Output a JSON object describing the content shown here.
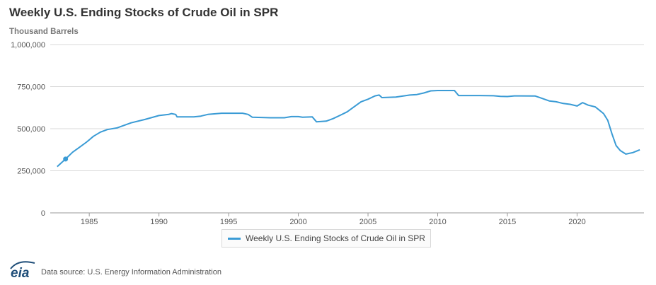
{
  "header": {
    "title": "Weekly U.S. Ending Stocks of Crude Oil in SPR",
    "units": "Thousand Barrels"
  },
  "legend": {
    "label": "Weekly U.S. Ending Stocks of Crude Oil in SPR",
    "color": "#3a9bd5"
  },
  "footer": {
    "logo_text": "eia",
    "source": "Data source: U.S. Energy Information Administration"
  },
  "colors": {
    "series": "#3a9bd5",
    "logo": "#1f4e79"
  },
  "chart_data": {
    "type": "line",
    "title": "Weekly U.S. Ending Stocks of Crude Oil in SPR",
    "ylabel": "Thousand Barrels",
    "xlabel": "",
    "xlim": [
      1982.2,
      2024.8
    ],
    "ylim": [
      0,
      1000000
    ],
    "x_ticks": [
      1985,
      1990,
      1995,
      2000,
      2005,
      2010,
      2015,
      2020
    ],
    "x_tick_labels": [
      "1985",
      "1990",
      "1995",
      "2000",
      "2005",
      "2010",
      "2015",
      "2020"
    ],
    "y_ticks": [
      0,
      250000,
      500000,
      750000,
      1000000
    ],
    "y_tick_labels": [
      "0",
      "250,000",
      "500,000",
      "750,000",
      "1,000,000"
    ],
    "grid": true,
    "legend_position": "bottom-center",
    "series": [
      {
        "name": "Weekly U.S. Ending Stocks of Crude Oil in SPR",
        "color": "#3a9bd5",
        "points": [
          [
            1982.7,
            275000
          ],
          [
            1983.3,
            320000
          ],
          [
            1983.8,
            360000
          ],
          [
            1984.3,
            390000
          ],
          [
            1984.8,
            420000
          ],
          [
            1985.3,
            455000
          ],
          [
            1985.8,
            480000
          ],
          [
            1986.3,
            495000
          ],
          [
            1987.0,
            505000
          ],
          [
            1988.0,
            535000
          ],
          [
            1989.0,
            555000
          ],
          [
            1990.0,
            578000
          ],
          [
            1990.7,
            585000
          ],
          [
            1990.9,
            590000
          ],
          [
            1991.2,
            585000
          ],
          [
            1991.3,
            570000
          ],
          [
            1992.5,
            570000
          ],
          [
            1993.0,
            575000
          ],
          [
            1993.5,
            585000
          ],
          [
            1994.5,
            592000
          ],
          [
            1996.0,
            592000
          ],
          [
            1996.4,
            585000
          ],
          [
            1996.7,
            568000
          ],
          [
            1998.0,
            565000
          ],
          [
            1999.0,
            565000
          ],
          [
            1999.5,
            572000
          ],
          [
            2000.0,
            572000
          ],
          [
            2000.3,
            568000
          ],
          [
            2001.0,
            570000
          ],
          [
            2001.3,
            541000
          ],
          [
            2002.0,
            545000
          ],
          [
            2002.5,
            560000
          ],
          [
            2003.0,
            580000
          ],
          [
            2003.5,
            600000
          ],
          [
            2004.0,
            630000
          ],
          [
            2004.5,
            660000
          ],
          [
            2005.0,
            675000
          ],
          [
            2005.5,
            695000
          ],
          [
            2005.8,
            700000
          ],
          [
            2006.0,
            685000
          ],
          [
            2007.0,
            688000
          ],
          [
            2008.0,
            700000
          ],
          [
            2008.5,
            703000
          ],
          [
            2009.0,
            712000
          ],
          [
            2009.5,
            725000
          ],
          [
            2010.0,
            727000
          ],
          [
            2011.2,
            727000
          ],
          [
            2011.5,
            697000
          ],
          [
            2013.0,
            697000
          ],
          [
            2014.0,
            696000
          ],
          [
            2014.5,
            692000
          ],
          [
            2015.0,
            691000
          ],
          [
            2015.5,
            695000
          ],
          [
            2016.0,
            695000
          ],
          [
            2017.0,
            694000
          ],
          [
            2017.5,
            680000
          ],
          [
            2018.0,
            665000
          ],
          [
            2018.5,
            660000
          ],
          [
            2019.0,
            650000
          ],
          [
            2019.5,
            645000
          ],
          [
            2020.0,
            635000
          ],
          [
            2020.4,
            655000
          ],
          [
            2020.8,
            640000
          ],
          [
            2021.3,
            630000
          ],
          [
            2021.6,
            610000
          ],
          [
            2021.9,
            590000
          ],
          [
            2022.2,
            550000
          ],
          [
            2022.5,
            470000
          ],
          [
            2022.8,
            400000
          ],
          [
            2023.1,
            370000
          ],
          [
            2023.5,
            349000
          ],
          [
            2024.0,
            358000
          ],
          [
            2024.5,
            375000
          ]
        ]
      }
    ],
    "highlighted_point": [
      1983.3,
      320000
    ]
  }
}
